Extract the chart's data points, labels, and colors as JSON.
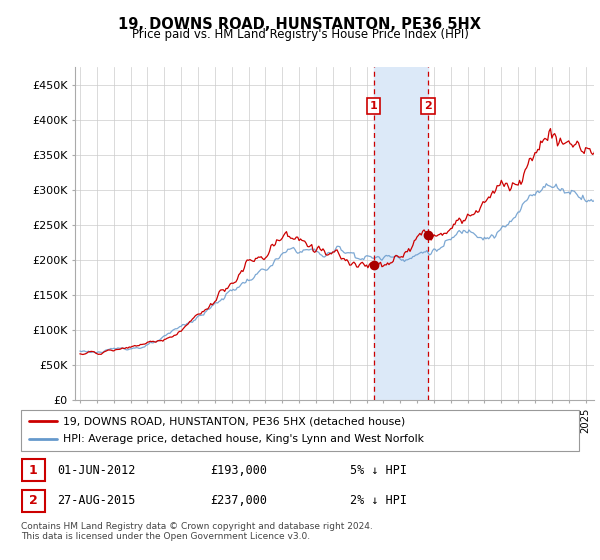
{
  "title": "19, DOWNS ROAD, HUNSTANTON, PE36 5HX",
  "subtitle": "Price paid vs. HM Land Registry's House Price Index (HPI)",
  "ylabel_ticks": [
    "£0",
    "£50K",
    "£100K",
    "£150K",
    "£200K",
    "£250K",
    "£300K",
    "£350K",
    "£400K",
    "£450K"
  ],
  "ytick_values": [
    0,
    50000,
    100000,
    150000,
    200000,
    250000,
    300000,
    350000,
    400000,
    450000
  ],
  "ylim": [
    0,
    475000
  ],
  "xlim_start": 1994.7,
  "xlim_end": 2025.5,
  "transaction1_x": 2012.42,
  "transaction1_y": 193000,
  "transaction2_x": 2015.65,
  "transaction2_y": 237000,
  "highlight_xmin": 2012.42,
  "highlight_xmax": 2015.65,
  "highlight_color": "#dce9f8",
  "line_color_red": "#cc0000",
  "line_color_blue": "#6699cc",
  "grid_color": "#cccccc",
  "background_color": "#ffffff",
  "legend_entry1": "19, DOWNS ROAD, HUNSTANTON, PE36 5HX (detached house)",
  "legend_entry2": "HPI: Average price, detached house, King's Lynn and West Norfolk",
  "table_row1": [
    "1",
    "01-JUN-2012",
    "£193,000",
    "5% ↓ HPI"
  ],
  "table_row2": [
    "2",
    "27-AUG-2015",
    "£237,000",
    "2% ↓ HPI"
  ],
  "footer1": "Contains HM Land Registry data © Crown copyright and database right 2024.",
  "footer2": "This data is licensed under the Open Government Licence v3.0."
}
